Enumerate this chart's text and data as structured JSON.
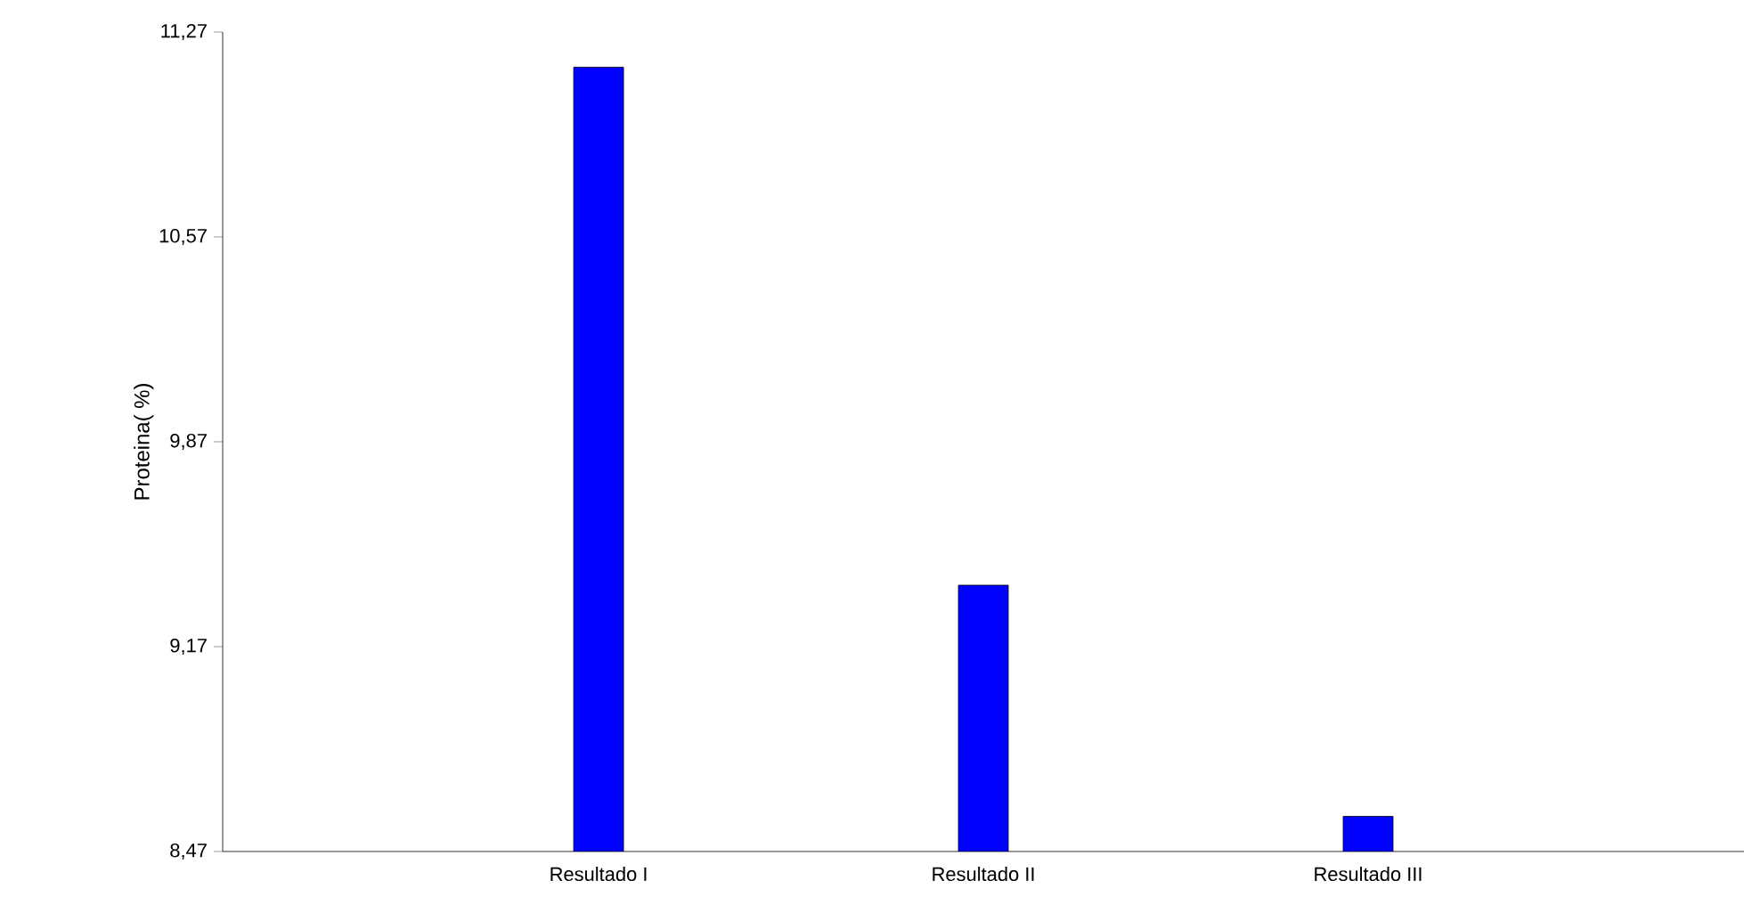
{
  "chart_data": {
    "type": "bar",
    "ylabel": "Proteina( %)",
    "categories": [
      "Resultado I",
      "Resultado II",
      "Resultado III"
    ],
    "values": [
      11.15,
      9.38,
      8.59
    ],
    "color": "#0000ff",
    "ylim": [
      8.47,
      11.27
    ],
    "yticks": [
      {
        "value": 8.47,
        "label": "8,47"
      },
      {
        "value": 9.17,
        "label": "9,17"
      },
      {
        "value": 9.87,
        "label": "9,87"
      },
      {
        "value": 10.57,
        "label": "10,57"
      },
      {
        "value": 11.27,
        "label": "11,27"
      }
    ],
    "grid": false
  }
}
